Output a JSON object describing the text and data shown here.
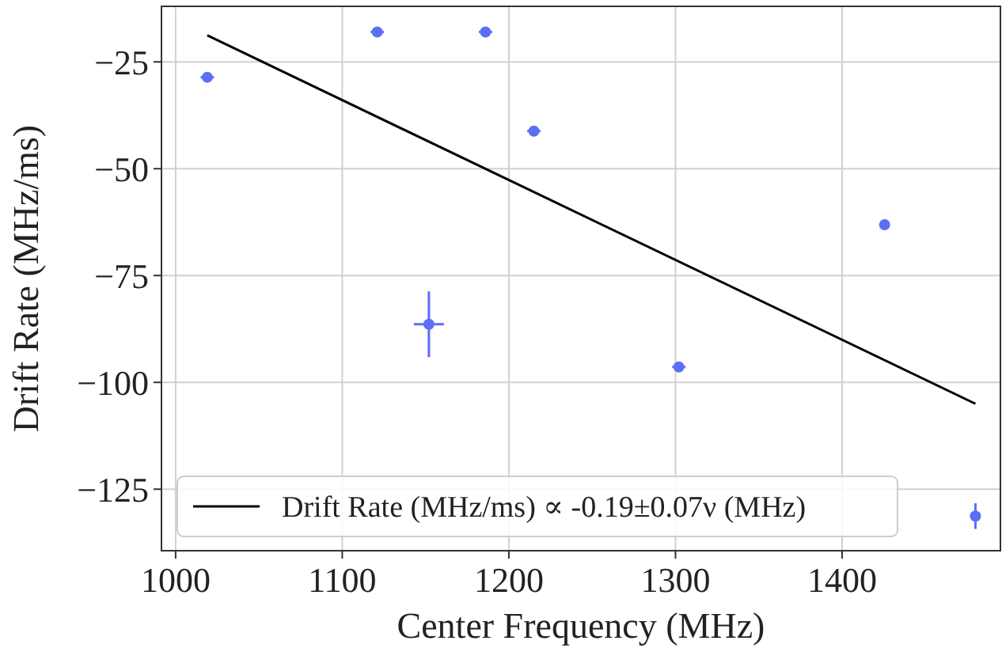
{
  "chart_data": {
    "type": "scatter",
    "xlabel": "Center Frequency (MHz)",
    "ylabel": "Drift Rate (MHz/ms)",
    "xlim": [
      991.5,
      1495
    ],
    "ylim": [
      -139.4,
      -12
    ],
    "xticks": [
      1000,
      1100,
      1200,
      1300,
      1400
    ],
    "yticks": [
      -125,
      -100,
      -75,
      -50,
      -25
    ],
    "grid": true,
    "legend": "bottom left",
    "series": [
      {
        "marker": "circle",
        "color": "#5b6ef5",
        "x": [
          1019,
          1121,
          1186,
          1215,
          1152,
          1302,
          1425.5,
          1480
        ],
        "values": [
          -28.6,
          -18,
          -18,
          -41.2,
          -86.4,
          -96.4,
          -63.1,
          -131.3
        ],
        "errors": [
          1,
          1,
          1,
          1,
          7.7,
          1,
          1,
          3
        ],
        "xerrors": [
          4,
          4,
          4,
          4,
          9,
          4,
          2,
          2
        ]
      },
      {
        "type": "line",
        "name": "Drift Rate (MHz/ms) ∝ -0.19±0.07ν (MHz)",
        "color": "#000000",
        "x": [
          1019,
          1480
        ],
        "values": [
          -18.8,
          -105
        ],
        "line_style": "solid"
      }
    ]
  }
}
